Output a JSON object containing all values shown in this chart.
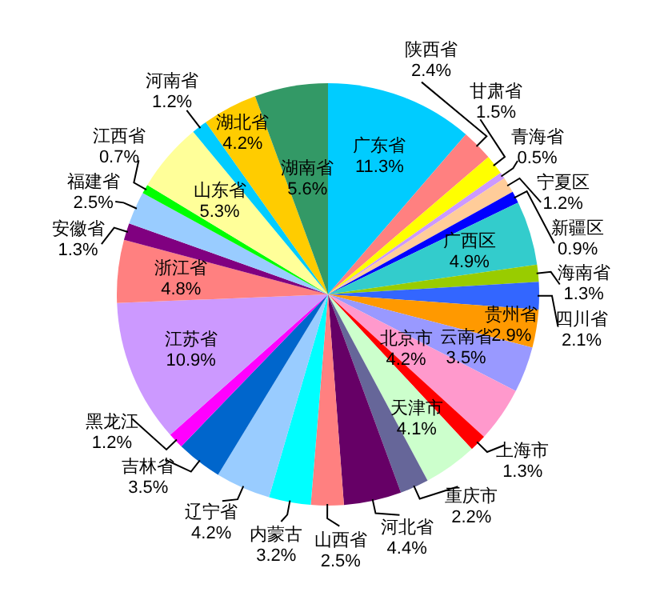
{
  "chart_data": {
    "type": "pie",
    "data_labels": true,
    "categories": [
      "广东省",
      "陕西省",
      "甘肃省",
      "青海省",
      "宁夏区",
      "新疆区",
      "广西区",
      "海南省",
      "四川省",
      "贵州省",
      "云南省",
      "北京市",
      "上海市",
      "天津市",
      "重庆市",
      "河北省",
      "山西省",
      "内蒙古",
      "辽宁省",
      "吉林省",
      "黑龙江",
      "江苏省",
      "浙江省",
      "安徽省",
      "福建省",
      "江西省",
      "山东省",
      "河南省",
      "湖北省",
      "湖南省"
    ],
    "values": [
      11.3,
      2.4,
      1.5,
      0.5,
      1.2,
      0.9,
      4.9,
      1.3,
      2.1,
      2.9,
      3.5,
      4.2,
      1.3,
      4.1,
      2.2,
      4.4,
      2.5,
      3.2,
      4.2,
      3.5,
      1.2,
      10.9,
      4.8,
      1.3,
      2.5,
      0.7,
      5.3,
      1.2,
      4.2,
      5.6
    ],
    "value_labels": [
      "11.3%",
      "2.4%",
      "1.5%",
      "0.5%",
      "1.2%",
      "0.9%",
      "4.9%",
      "1.3%",
      "2.1%",
      "2.9%",
      "3.5%",
      "4.2%",
      "1.3%",
      "4.1%",
      "2.2%",
      "4.4%",
      "2.5%",
      "3.2%",
      "4.2%",
      "3.5%",
      "1.2%",
      "10.9%",
      "4.8%",
      "1.3%",
      "2.5%",
      "0.7%",
      "5.3%",
      "1.2%",
      "4.2%",
      "5.6%"
    ],
    "colors": [
      "#00ccff",
      "#ff8080",
      "#ffff00",
      "#cc99ff",
      "#ffcc99",
      "#0000ff",
      "#33cccc",
      "#99cc00",
      "#3366ff",
      "#ff9900",
      "#9999ff",
      "#ff99cc",
      "#ff0000",
      "#ccffcc",
      "#666699",
      "#660066",
      "#ff8080",
      "#00ffff",
      "#99ccff",
      "#0066cc",
      "#ff00ff",
      "#cc99ff",
      "#ff8080",
      "#800080",
      "#99ccff",
      "#00ff00",
      "#ffff99",
      "#00ccff",
      "#ffcc00",
      "#339966"
    ]
  }
}
